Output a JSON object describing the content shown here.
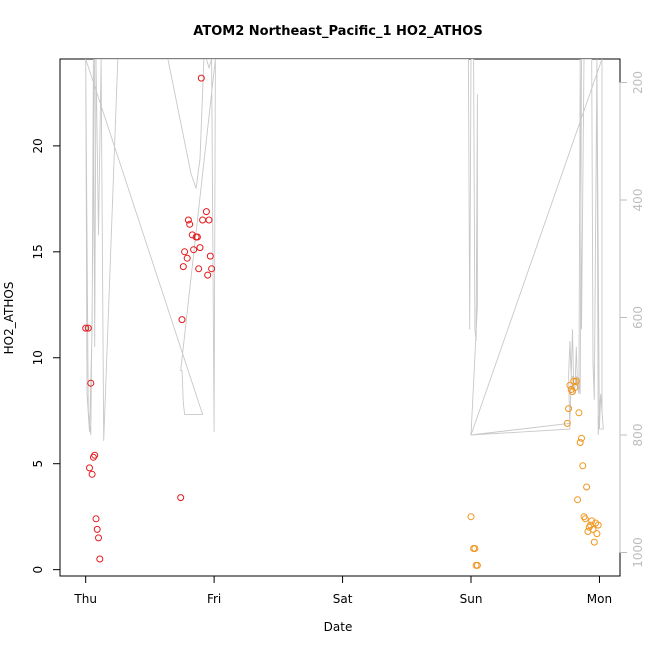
{
  "chart_data": {
    "type": "scatter",
    "title": "ATOM2 Northeast_Pacific_1 HO2_ATHOS",
    "xlabel": "Date",
    "ylabel": "HO2_ATHOS",
    "x_ticks": [
      "Thu",
      "Fri",
      "Sat",
      "Sun",
      "Mon"
    ],
    "xlim": [
      -0.2,
      4.16
    ],
    "ylim": [
      -0.3,
      24.1
    ],
    "y_ticks": [
      0,
      5,
      10,
      15,
      20
    ],
    "y2_ticks": [
      200,
      400,
      600,
      800,
      1000
    ],
    "y2lim": [
      1040,
      160
    ],
    "y2_reversed": true,
    "grid": false,
    "colors": {
      "series_a": "#e41a1c",
      "series_b": "#f0961e",
      "secondary_line": "#c8c8c8",
      "axis": "#000000",
      "right_axis": "#bdbdbd"
    },
    "series": [
      {
        "color_key": "series_a",
        "marker": "open-circle",
        "points": [
          [
            0.0,
            11.4
          ],
          [
            0.02,
            11.4
          ],
          [
            0.03,
            4.8
          ],
          [
            0.04,
            8.8
          ],
          [
            0.05,
            4.5
          ],
          [
            0.06,
            5.3
          ],
          [
            0.07,
            5.4
          ],
          [
            0.08,
            2.4
          ],
          [
            0.09,
            1.9
          ],
          [
            0.1,
            1.5
          ],
          [
            0.11,
            0.5
          ],
          [
            0.74,
            3.4
          ],
          [
            0.75,
            11.8
          ],
          [
            0.76,
            14.3
          ],
          [
            0.77,
            15.0
          ],
          [
            0.79,
            14.7
          ],
          [
            0.8,
            16.5
          ],
          [
            0.81,
            16.3
          ],
          [
            0.83,
            15.8
          ],
          [
            0.84,
            15.1
          ],
          [
            0.86,
            15.7
          ],
          [
            0.87,
            15.7
          ],
          [
            0.88,
            14.2
          ],
          [
            0.89,
            15.2
          ],
          [
            0.9,
            23.2
          ],
          [
            0.91,
            16.5
          ],
          [
            0.94,
            16.9
          ],
          [
            0.95,
            13.9
          ],
          [
            0.96,
            16.5
          ],
          [
            0.97,
            14.8
          ],
          [
            0.98,
            14.2
          ]
        ]
      },
      {
        "color_key": "series_b",
        "marker": "open-circle",
        "points": [
          [
            3.0,
            2.5
          ],
          [
            3.02,
            1.0
          ],
          [
            3.03,
            1.0
          ],
          [
            3.04,
            0.2
          ],
          [
            3.05,
            0.2
          ],
          [
            3.75,
            6.9
          ],
          [
            3.76,
            7.6
          ],
          [
            3.77,
            8.7
          ],
          [
            3.78,
            8.5
          ],
          [
            3.79,
            8.4
          ],
          [
            3.8,
            8.9
          ],
          [
            3.81,
            8.6
          ],
          [
            3.82,
            8.9
          ],
          [
            3.83,
            3.3
          ],
          [
            3.84,
            7.4
          ],
          [
            3.85,
            6.0
          ],
          [
            3.86,
            6.2
          ],
          [
            3.87,
            4.9
          ],
          [
            3.88,
            2.5
          ],
          [
            3.89,
            2.4
          ],
          [
            3.9,
            3.9
          ],
          [
            3.91,
            1.8
          ],
          [
            3.92,
            2.0
          ],
          [
            3.93,
            2.1
          ],
          [
            3.94,
            2.3
          ],
          [
            3.95,
            1.9
          ],
          [
            3.96,
            1.3
          ],
          [
            3.97,
            2.2
          ],
          [
            3.98,
            1.7
          ],
          [
            3.99,
            2.1
          ]
        ]
      }
    ],
    "secondary_line": {
      "color_key": "secondary_line",
      "axis": "right",
      "points": [
        [
          0.0,
          160
        ],
        [
          0.01,
          730
        ],
        [
          0.03,
          795
        ],
        [
          0.05,
          620
        ],
        [
          0.06,
          160
        ],
        [
          0.07,
          650
        ],
        [
          0.08,
          160
        ],
        [
          0.1,
          460
        ],
        [
          0.12,
          160
        ],
        [
          0.14,
          810
        ],
        [
          0.25,
          160
        ],
        [
          0.64,
          160
        ],
        [
          0.82,
          355
        ],
        [
          0.86,
          380
        ],
        [
          0.89,
          330
        ],
        [
          0.92,
          160
        ],
        [
          0.94,
          160
        ],
        [
          0.96,
          175
        ],
        [
          0.98,
          160
        ],
        [
          1.0,
          795
        ],
        [
          1.0,
          780
        ],
        [
          1.01,
          160
        ],
        [
          0.74,
          690
        ],
        [
          0.75,
          690
        ],
        [
          0.76,
          745
        ],
        [
          0.77,
          765
        ],
        [
          0.79,
          765
        ],
        [
          0.8,
          765
        ],
        [
          0.82,
          765
        ],
        [
          0.83,
          765
        ],
        [
          0.84,
          765
        ],
        [
          0.85,
          765
        ],
        [
          0.88,
          765
        ],
        [
          0.89,
          765
        ],
        [
          0.9,
          765
        ],
        [
          0.91,
          765
        ],
        [
          0.0,
          160
        ],
        [
          0.02,
          760
        ],
        [
          0.04,
          800
        ],
        [
          0.07,
          160
        ],
        [
          2.98,
          160
        ],
        [
          2.99,
          620
        ],
        [
          3.0,
          160
        ],
        [
          3.02,
          160
        ],
        [
          3.03,
          620
        ],
        [
          3.04,
          640
        ],
        [
          3.05,
          220
        ],
        [
          3.05,
          580
        ],
        [
          3.0,
          800
        ],
        [
          3.77,
          780
        ],
        [
          3.78,
          700
        ],
        [
          3.79,
          620
        ],
        [
          3.8,
          730
        ],
        [
          3.82,
          700
        ],
        [
          3.84,
          730
        ],
        [
          3.85,
          160
        ],
        [
          3.86,
          620
        ],
        [
          3.88,
          160
        ],
        [
          3.89,
          160
        ],
        [
          3.9,
          160
        ],
        [
          3.92,
          160
        ],
        [
          3.94,
          160
        ],
        [
          3.95,
          670
        ],
        [
          3.96,
          740
        ],
        [
          3.98,
          160
        ],
        [
          3.99,
          800
        ],
        [
          4.0,
          760
        ],
        [
          4.01,
          730
        ],
        [
          4.02,
          760
        ],
        [
          4.02,
          160
        ],
        [
          3.0,
          800
        ],
        [
          3.77,
          790
        ],
        [
          3.76,
          700
        ],
        [
          3.77,
          640
        ],
        [
          3.78,
          700
        ],
        [
          3.79,
          700
        ],
        [
          3.8,
          730
        ],
        [
          3.81,
          720
        ],
        [
          3.82,
          650
        ],
        [
          3.83,
          720
        ],
        [
          3.84,
          700
        ],
        [
          3.85,
          730
        ],
        [
          3.86,
          160
        ],
        [
          3.88,
          160
        ],
        [
          3.9,
          160
        ],
        [
          3.92,
          160
        ],
        [
          3.94,
          160
        ],
        [
          3.95,
          680
        ],
        [
          3.96,
          740
        ],
        [
          3.98,
          160
        ],
        [
          4.0,
          790
        ],
        [
          4.01,
          730
        ],
        [
          4.03,
          790
        ],
        [
          4.0,
          790
        ]
      ]
    }
  }
}
